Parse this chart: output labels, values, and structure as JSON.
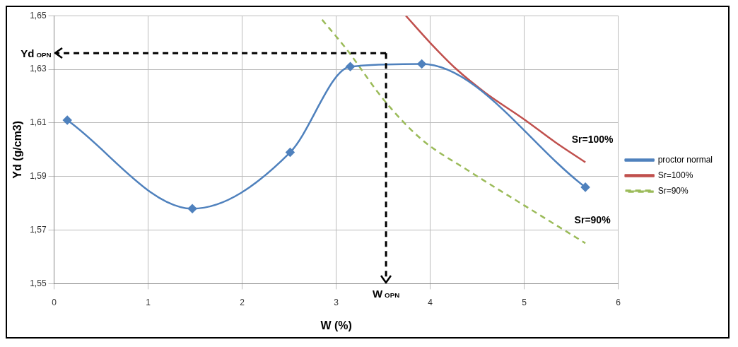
{
  "chart_data": {
    "type": "line",
    "xlabel": "W (%)",
    "ylabel": "Yd (g/cm3)",
    "xlim": [
      0,
      6
    ],
    "xticks": [
      0,
      1,
      2,
      3,
      4,
      5,
      6
    ],
    "ylim": [
      1.55,
      1.65
    ],
    "yticks": [
      {
        "value": 1.55,
        "label": "1,55"
      },
      {
        "value": 1.57,
        "label": "1,57"
      },
      {
        "value": 1.59,
        "label": "1,59"
      },
      {
        "value": 1.61,
        "label": "1,61"
      },
      {
        "value": 1.63,
        "label": "1,63"
      },
      {
        "value": 1.65,
        "label": "1,65"
      }
    ],
    "grid": true,
    "legend": "right",
    "series": [
      {
        "name": "proctor normal",
        "color": "#4f81bd",
        "marker": "diamond",
        "line_style": "solid",
        "x": [
          0.14,
          1.47,
          2.51,
          3.15,
          3.91,
          5.65
        ],
        "values": [
          1.611,
          1.578,
          1.599,
          1.631,
          1.632,
          1.586
        ]
      },
      {
        "name": "Sr=100%",
        "color": "#c0504d",
        "marker": "none",
        "line_style": "solid",
        "x": [
          3.74,
          4.01,
          4.28,
          4.58,
          5.0,
          5.33,
          5.65
        ],
        "values": [
          1.65,
          1.6395,
          1.63,
          1.6214,
          1.6113,
          1.6028,
          1.5953
        ]
      },
      {
        "name": "Sr=90%",
        "color": "#9bbb59",
        "marker": "none",
        "line_style": "dashed",
        "x": [
          2.85,
          3.11,
          3.52,
          3.91,
          4.4,
          5.0,
          5.65
        ],
        "values": [
          1.6485,
          1.6375,
          1.618,
          1.6038,
          1.5923,
          1.5792,
          1.5651
        ]
      }
    ],
    "ref_lines": [
      {
        "axis": "y",
        "value": 1.636,
        "label": "Yd$_{OPN}$",
        "color": "#000000",
        "line_style": "dashed"
      },
      {
        "axis": "x",
        "value": 3.53,
        "label": "W$_{OPN}$",
        "color": "#000000",
        "line_style": "dashed"
      }
    ],
    "annotations": [
      {
        "text": "Sr=100%",
        "x": 5.65,
        "y": 1.5953
      },
      {
        "text": "Sr=90%",
        "x": 5.65,
        "y": 1.5651
      }
    ]
  }
}
